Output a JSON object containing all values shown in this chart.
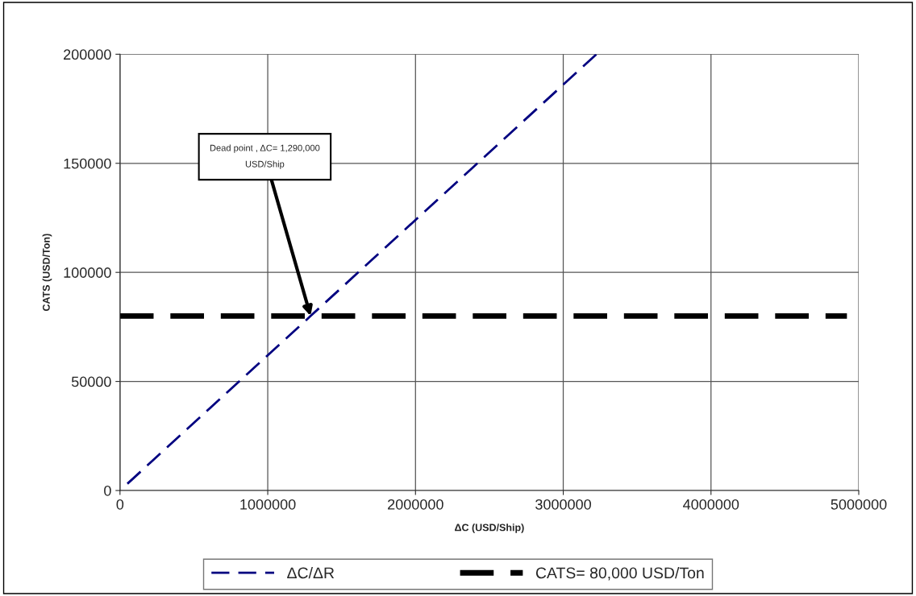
{
  "chart_data": {
    "type": "line",
    "xlabel": "ΔC (USD/Ship)",
    "ylabel": "CATS (USD/Ton)",
    "series": [
      {
        "name": "ΔC/ΔR",
        "color": "#000080",
        "line_style": "dashed",
        "x": [
          50000,
          1290000,
          3225000
        ],
        "values": [
          3100,
          80000,
          200000
        ]
      },
      {
        "name": "CATS= 80,000 USD/Ton",
        "color": "#000000",
        "line_style": "dashed",
        "x": [
          0,
          4920000
        ],
        "values": [
          80000,
          80000
        ]
      }
    ],
    "xlim": [
      0,
      5000000
    ],
    "xticks": [
      0,
      1000000,
      2000000,
      3000000,
      4000000,
      5000000
    ],
    "ylim": [
      0,
      200000
    ],
    "yticks": [
      0,
      50000,
      100000,
      150000,
      200000
    ],
    "grid": true,
    "legend": "bottom",
    "marker": "none",
    "annotations": [
      {
        "text": "Dead point , ΔC= 1,290,000\nUSD/Ship",
        "x": 1290000,
        "y": 80000
      }
    ]
  }
}
